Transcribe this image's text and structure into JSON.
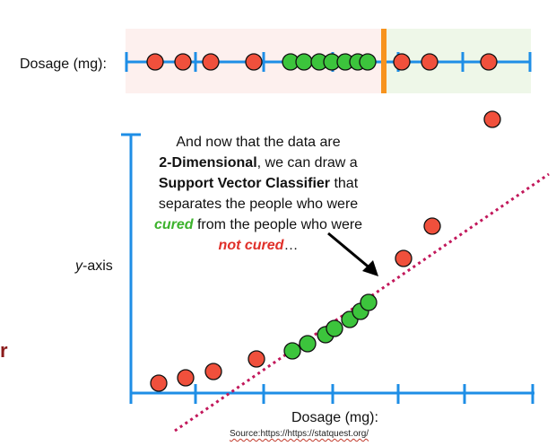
{
  "top_line": {
    "label": "Dosage (mg):",
    "cured_color": "#3cc43c",
    "not_cured_color": "#f0503c",
    "axis_color": "#1e8ee6",
    "threshold_color": "#f7931e"
  },
  "plot": {
    "y_label_italic": "y",
    "y_label_rest": "-axis",
    "x_label": "Dosage (mg):",
    "classifier_color": "#c2185b"
  },
  "annotation": {
    "line1": "And now that the data are",
    "line2_bold": "2-Dimensional",
    "line2_rest": ", we can draw a",
    "line3_bold": "Support Vector Classifier",
    "line3_rest": " that",
    "line4": "separates the people who were",
    "line5_cured": "cured",
    "line5_rest": " from the people who were",
    "line6_not_cured": "not cured",
    "line6_rest": "…"
  },
  "source": "Source:https://https://statquest.org/",
  "edge_letter": "r"
}
